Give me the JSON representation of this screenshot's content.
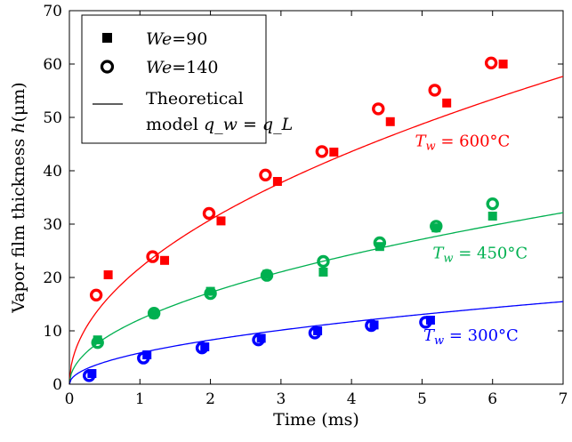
{
  "chart_data": {
    "type": "scatter",
    "xlabel": "Time (ms)",
    "ylabel": "Vapor film thickness h(μm)",
    "ylabel_parts": {
      "main": "Vapor film thickness ",
      "var": "h",
      "unit": "(μm)"
    },
    "xlim": [
      0,
      7
    ],
    "ylim": [
      0,
      70
    ],
    "xticks": [
      0,
      1,
      2,
      3,
      4,
      5,
      6,
      7
    ],
    "yticks": [
      0,
      10,
      20,
      30,
      40,
      50,
      60,
      70
    ],
    "grid": false,
    "legend_position": "top-left",
    "legend": [
      {
        "marker": "filled-square",
        "text_italic": "We",
        "text_rest": "=90"
      },
      {
        "marker": "open-circle",
        "text_italic": "We",
        "text_rest": "=140"
      },
      {
        "marker": "line",
        "line1": "Theoretical",
        "line2_prefix": "model ",
        "line2_formula": "q_w = q_L"
      }
    ],
    "colors": {
      "T600": "#ff0000",
      "T450": "#00b050",
      "T300": "#0000ff"
    },
    "series": [
      {
        "name": "T_w = 600°C",
        "label_text": "Tw = 600°C",
        "label_var": "T",
        "label_sub": "w",
        "label_rest": " = 600°C",
        "color": "#ff0000",
        "we90": [
          [
            0.55,
            20.5
          ],
          [
            1.35,
            23.2
          ],
          [
            2.15,
            30.6
          ],
          [
            2.95,
            38.0
          ],
          [
            3.75,
            43.5
          ],
          [
            4.55,
            49.2
          ],
          [
            5.35,
            52.7
          ],
          [
            6.15,
            60.0
          ]
        ],
        "we140": [
          [
            0.38,
            16.7
          ],
          [
            1.18,
            23.9
          ],
          [
            1.98,
            32.0
          ],
          [
            2.78,
            39.2
          ],
          [
            3.58,
            43.6
          ],
          [
            4.38,
            51.6
          ],
          [
            5.18,
            55.1
          ],
          [
            5.98,
            60.2
          ]
        ],
        "model_k": 21.8
      },
      {
        "name": "T_w = 450°C",
        "label_text": "Tw = 450°C",
        "label_var": "T",
        "label_sub": "w",
        "label_rest": " = 450°C",
        "color": "#00b050",
        "we90": [
          [
            0.4,
            8.3
          ],
          [
            1.2,
            13.1
          ],
          [
            2.0,
            17.4
          ],
          [
            2.8,
            20.6
          ],
          [
            3.6,
            21.0
          ],
          [
            4.4,
            25.8
          ],
          [
            5.2,
            29.3
          ],
          [
            6.0,
            31.5
          ]
        ],
        "we140": [
          [
            0.4,
            7.8
          ],
          [
            1.2,
            13.3
          ],
          [
            2.0,
            17.0
          ],
          [
            2.8,
            20.4
          ],
          [
            3.6,
            23.0
          ],
          [
            4.4,
            26.5
          ],
          [
            5.2,
            29.6
          ],
          [
            6.0,
            33.8
          ]
        ],
        "model_k": 12.15
      },
      {
        "name": "T_w = 300°C",
        "label_text": "Tw = 300°C",
        "label_var": "T",
        "label_sub": "w",
        "label_rest": " = 300°C",
        "color": "#0000ff",
        "we90": [
          [
            0.32,
            2.0
          ],
          [
            1.1,
            5.5
          ],
          [
            1.92,
            7.0
          ],
          [
            2.72,
            8.6
          ],
          [
            3.52,
            10.0
          ],
          [
            4.32,
            11.1
          ],
          [
            5.12,
            12.0
          ]
        ],
        "we140": [
          [
            0.28,
            1.6
          ],
          [
            1.05,
            4.9
          ],
          [
            1.88,
            6.8
          ],
          [
            2.68,
            8.3
          ],
          [
            3.48,
            9.6
          ],
          [
            4.28,
            11.0
          ],
          [
            5.05,
            11.6
          ]
        ],
        "model_k": 5.85
      }
    ]
  }
}
